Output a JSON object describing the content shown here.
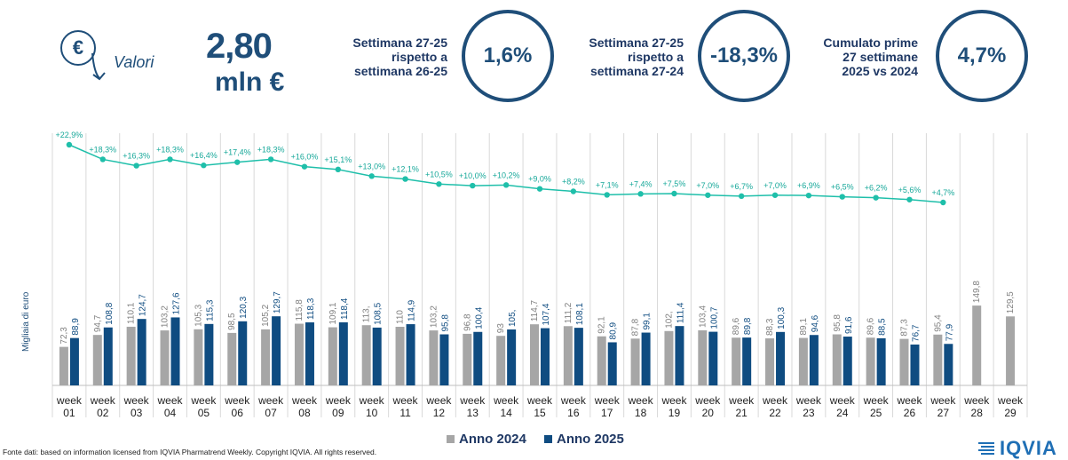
{
  "header": {
    "currency_icon": "euro-circle-icon",
    "valori_label": "Valori",
    "total_value": "2,80",
    "total_unit": "mln €",
    "kpis": [
      {
        "label_lines": [
          "Settimana 27-25",
          "rispetto a",
          "settimana 26-25"
        ],
        "value": "1,6%"
      },
      {
        "label_lines": [
          "Settimana 27-25",
          "rispetto a",
          "settimana 27-24"
        ],
        "value": "-18,3%"
      },
      {
        "label_lines": [
          "Cumulato prime",
          "27 settimane",
          "2025 vs 2024"
        ],
        "value": "4,7%"
      }
    ]
  },
  "chart_data": {
    "type": "bar",
    "ylabel": "Migliaia di euro",
    "categories": [
      "week\n01",
      "week\n02",
      "week\n03",
      "week\n04",
      "week\n05",
      "week\n06",
      "week\n07",
      "week\n08",
      "week\n09",
      "week\n10",
      "week\n11",
      "week\n12",
      "week\n13",
      "week\n14",
      "week\n15",
      "week\n16",
      "week\n17",
      "week\n18",
      "week\n19",
      "week\n20",
      "week\n21",
      "week\n22",
      "week\n23",
      "week\n24",
      "week\n25",
      "week\n26",
      "week\n27",
      "week\n28",
      "week\n29"
    ],
    "series": [
      {
        "name": "Anno 2024",
        "color": "#a6a6a6",
        "values": [
          72.3,
          94.7,
          110.1,
          103.2,
          105.3,
          98.5,
          105.2,
          115.8,
          109.1,
          113,
          110,
          103.2,
          96.8,
          93,
          114.7,
          111.2,
          92.1,
          87.8,
          102,
          103.4,
          89.6,
          88.3,
          89.1,
          95.8,
          89.6,
          87.3,
          95.4,
          149.8,
          129.5
        ],
        "labels": [
          "72,3",
          "94,7",
          "110,1",
          "103,2",
          "105,3",
          "98,5",
          "105,2",
          "115,8",
          "109,1",
          "113,",
          "110",
          "103,2",
          "96,8",
          "93",
          "114,7",
          "111,2",
          "92,1",
          "87,8",
          "102,",
          "103,4",
          "89,6",
          "88,3",
          "89,1",
          "95,8",
          "89,6",
          "87,3",
          "95,4",
          "149,8",
          "129,5"
        ]
      },
      {
        "name": "Anno 2025",
        "color": "#0f4c81",
        "values": [
          88.9,
          108.8,
          124.7,
          127.6,
          115.3,
          120.3,
          129.7,
          118.3,
          118.4,
          108.5,
          114.9,
          95.8,
          100.4,
          105,
          107.4,
          108.1,
          80.9,
          99.1,
          111.4,
          100.7,
          89.8,
          100.3,
          94.6,
          91.6,
          88.5,
          76.7,
          77.9,
          null,
          null
        ],
        "labels": [
          "88,9",
          "108,8",
          "124,7",
          "127,6",
          "115,3",
          "120,3",
          "129,7",
          "118,3",
          "118,4",
          "108,5",
          "114,9",
          "95,8",
          "100,4",
          "105,",
          "107,4",
          "108,1",
          "80,9",
          "99,1",
          "111,4",
          "100,7",
          "89,8",
          "100,3",
          "94,6",
          "91,6",
          "88,5",
          "76,7",
          "77,9",
          "",
          ""
        ]
      }
    ],
    "growth_line": {
      "color": "#1fbfaa",
      "values": [
        22.9,
        18.3,
        16.3,
        18.3,
        16.4,
        17.4,
        18.3,
        16.0,
        15.1,
        13.0,
        12.1,
        10.5,
        10.0,
        10.2,
        9.0,
        8.2,
        7.1,
        7.4,
        7.5,
        7.0,
        6.7,
        7.0,
        6.9,
        6.5,
        6.2,
        5.6,
        4.7
      ],
      "labels": [
        "+22,9%",
        "+18,3%",
        "+16,3%",
        "+18,3%",
        "+16,4%",
        "+17,4%",
        "+18,3%",
        "+16,0%",
        "+15,1%",
        "+13,0%",
        "+12,1%",
        "+10,5%",
        "+10,0%",
        "+10,2%",
        "+9,0%",
        "+8,2%",
        "+7,1%",
        "+7,4%",
        "+7,5%",
        "+7,0%",
        "+6,7%",
        "+7,0%",
        "+6,9%",
        "+6,5%",
        "+6,2%",
        "+5,6%",
        "+4,7%"
      ]
    },
    "legend": [
      "Anno 2024",
      "Anno 2025"
    ]
  },
  "footer": {
    "source": "Fonte dati: based on information licensed from IQVIA Pharmatrend Weekly. Copyright IQVIA. All rights reserved."
  },
  "logo": {
    "text": "IQVIA"
  }
}
